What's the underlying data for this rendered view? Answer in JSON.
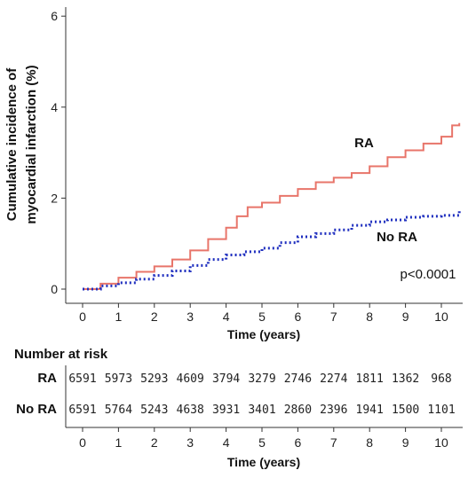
{
  "chart_data": {
    "type": "line",
    "step": true,
    "xlabel": "Time (years)",
    "ylabel_lines": [
      "Cumulative incidence of",
      "myocardial infarction (%)"
    ],
    "xlim": [
      0,
      10.5
    ],
    "ylim": [
      0,
      6
    ],
    "x_ticks": [
      "0",
      "1",
      "2",
      "3",
      "4",
      "5",
      "6",
      "7",
      "8",
      "9",
      "10"
    ],
    "y_ticks": [
      "0",
      "2",
      "4",
      "6"
    ],
    "grid": false,
    "annotation": "p<0.0001",
    "series": [
      {
        "name": "RA",
        "color": "#e8756a",
        "line_style": "solid",
        "x": [
          0,
          0.5,
          1,
          1.5,
          2,
          2.5,
          3,
          3.5,
          4,
          4.3,
          4.6,
          5,
          5.5,
          6,
          6.5,
          7,
          7.5,
          8,
          8.5,
          9,
          9.5,
          10,
          10.3,
          10.5
        ],
        "y": [
          0,
          0.12,
          0.25,
          0.38,
          0.5,
          0.65,
          0.85,
          1.1,
          1.35,
          1.6,
          1.8,
          1.9,
          2.05,
          2.2,
          2.35,
          2.45,
          2.55,
          2.7,
          2.9,
          3.05,
          3.2,
          3.35,
          3.6,
          3.65
        ]
      },
      {
        "name": "No RA",
        "color": "#1f2fbf",
        "line_style": "dotted",
        "x": [
          0,
          0.5,
          1,
          1.5,
          2,
          2.5,
          3,
          3.5,
          4,
          4.5,
          5,
          5.5,
          6,
          6.5,
          7,
          7.5,
          8,
          8.5,
          9,
          9.5,
          10,
          10.5
        ],
        "y": [
          0,
          0.07,
          0.14,
          0.22,
          0.3,
          0.4,
          0.52,
          0.65,
          0.75,
          0.82,
          0.9,
          1.02,
          1.15,
          1.22,
          1.3,
          1.4,
          1.48,
          1.52,
          1.58,
          1.6,
          1.62,
          1.72
        ]
      }
    ],
    "risk_table": {
      "title": "Number at risk",
      "xlabel": "Time (years)",
      "rows": [
        {
          "label": "RA",
          "values": [
            "6591",
            "5973",
            "5293",
            "4609",
            "3794",
            "3279",
            "2746",
            "2274",
            "1811",
            "1362",
            "968"
          ]
        },
        {
          "label": "No RA",
          "values": [
            "6591",
            "5764",
            "5243",
            "4638",
            "3931",
            "3401",
            "2860",
            "2396",
            "1941",
            "1500",
            "1101"
          ]
        }
      ]
    }
  }
}
